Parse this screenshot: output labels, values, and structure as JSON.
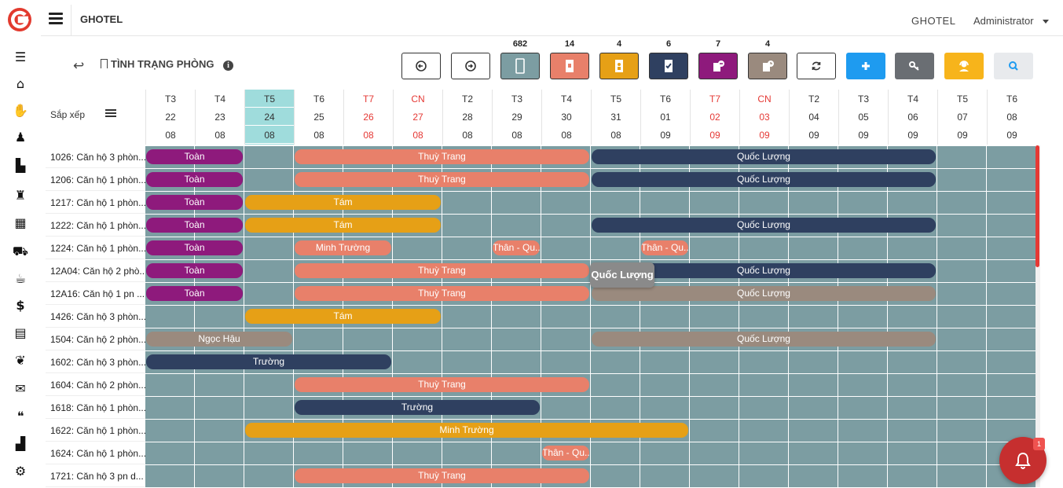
{
  "app": {
    "brand": "GHOTEL",
    "brand_right": "GHOTEL",
    "user": "Administrator"
  },
  "page": {
    "title": "TÌNH TRẠNG PHÒNG"
  },
  "toolbar": {
    "counts": [
      "682",
      "14",
      "4",
      "6",
      "7",
      "4"
    ],
    "colors": {
      "blank": "#7c9da2",
      "dirty": "#e8806a",
      "occupied": "#e6a016",
      "checkout": "#2f4060",
      "repair": "#8e1a7c",
      "reserved": "#9a8a7e",
      "add": "#1e9bf0",
      "key": "#6a6e73",
      "support": "#f7b41b",
      "search": "#e8eaed"
    }
  },
  "grid": {
    "sort_label": "Sắp xếp",
    "days": [
      {
        "dow": "T3",
        "d": "22",
        "m": "08",
        "wk": false
      },
      {
        "dow": "T4",
        "d": "23",
        "m": "08",
        "wk": false
      },
      {
        "dow": "T5",
        "d": "24",
        "m": "08",
        "wk": false,
        "today": true
      },
      {
        "dow": "T6",
        "d": "25",
        "m": "08",
        "wk": false
      },
      {
        "dow": "T7",
        "d": "26",
        "m": "08",
        "wk": true
      },
      {
        "dow": "CN",
        "d": "27",
        "m": "08",
        "wk": true
      },
      {
        "dow": "T2",
        "d": "28",
        "m": "08",
        "wk": false
      },
      {
        "dow": "T3",
        "d": "29",
        "m": "08",
        "wk": false
      },
      {
        "dow": "T4",
        "d": "30",
        "m": "08",
        "wk": false
      },
      {
        "dow": "T5",
        "d": "31",
        "m": "08",
        "wk": false
      },
      {
        "dow": "T6",
        "d": "01",
        "m": "09",
        "wk": false
      },
      {
        "dow": "T7",
        "d": "02",
        "m": "09",
        "wk": true
      },
      {
        "dow": "CN",
        "d": "03",
        "m": "09",
        "wk": true
      },
      {
        "dow": "T2",
        "d": "04",
        "m": "09",
        "wk": false
      },
      {
        "dow": "T3",
        "d": "05",
        "m": "09",
        "wk": false
      },
      {
        "dow": "T4",
        "d": "06",
        "m": "09",
        "wk": false
      },
      {
        "dow": "T5",
        "d": "07",
        "m": "09",
        "wk": false
      },
      {
        "dow": "T6",
        "d": "08",
        "m": "09",
        "wk": false
      }
    ],
    "rooms": [
      {
        "label": "1026: Căn hộ 3 phòn...",
        "bookings": [
          {
            "name": "Toàn",
            "start": 0,
            "span": 2,
            "color": "#8e1a7c"
          },
          {
            "name": "Thuỳ Trang",
            "start": 3,
            "span": 6,
            "color": "#e8806a"
          },
          {
            "name": "Quốc Lượng",
            "start": 9,
            "span": 7,
            "color": "#2f4060"
          }
        ]
      },
      {
        "label": "1206: Căn hộ 1 phòn...",
        "bookings": [
          {
            "name": "Toàn",
            "start": 0,
            "span": 2,
            "color": "#8e1a7c"
          },
          {
            "name": "Thuỳ Trang",
            "start": 3,
            "span": 6,
            "color": "#e8806a"
          },
          {
            "name": "Quốc Lượng",
            "start": 9,
            "span": 7,
            "color": "#2f4060"
          }
        ]
      },
      {
        "label": "1217: Căn hộ 1 phòn...",
        "bookings": [
          {
            "name": "Toàn",
            "start": 0,
            "span": 2,
            "color": "#8e1a7c"
          },
          {
            "name": "Tám",
            "start": 2,
            "span": 4,
            "color": "#e6a016"
          }
        ]
      },
      {
        "label": "1222: Căn hộ 1 phòn...",
        "bookings": [
          {
            "name": "Toàn",
            "start": 0,
            "span": 2,
            "color": "#8e1a7c"
          },
          {
            "name": "Tám",
            "start": 2,
            "span": 4,
            "color": "#e6a016"
          },
          {
            "name": "Quốc Lượng",
            "start": 9,
            "span": 7,
            "color": "#2f4060"
          }
        ]
      },
      {
        "label": "1224: Căn hộ 1 phòn...",
        "bookings": [
          {
            "name": "Toàn",
            "start": 0,
            "span": 2,
            "color": "#8e1a7c"
          },
          {
            "name": "Minh Trường",
            "start": 3,
            "span": 2,
            "color": "#e8806a"
          },
          {
            "name": "Thân - Qu...",
            "start": 7,
            "span": 1,
            "color": "#e8806a"
          },
          {
            "name": "Thân - Qu...",
            "start": 10,
            "span": 1,
            "color": "#e8806a"
          }
        ]
      },
      {
        "label": "12A04: Căn hộ 2 phò...",
        "bookings": [
          {
            "name": "Toàn",
            "start": 0,
            "span": 2,
            "color": "#8e1a7c"
          },
          {
            "name": "Thuỳ Trang",
            "start": 3,
            "span": 6,
            "color": "#e8806a"
          },
          {
            "name": "Quốc Lượng",
            "start": 9,
            "span": 7,
            "color": "#2f4060"
          }
        ]
      },
      {
        "label": "12A16: Căn hộ 1 pn ...",
        "bookings": [
          {
            "name": "Toàn",
            "start": 0,
            "span": 2,
            "color": "#8e1a7c"
          },
          {
            "name": "Thuỳ Trang",
            "start": 3,
            "span": 6,
            "color": "#e8806a"
          },
          {
            "name": "Quốc Lượng",
            "start": 9,
            "span": 7,
            "color": "#9a8a7e"
          }
        ]
      },
      {
        "label": "1426: Căn hộ 3 phòn...",
        "bookings": [
          {
            "name": "Tám",
            "start": 2,
            "span": 4,
            "color": "#e6a016"
          }
        ]
      },
      {
        "label": "1504: Căn hộ 2 phòn...",
        "bookings": [
          {
            "name": "Ngọc Hậu",
            "start": 0,
            "span": 3,
            "color": "#9a8a7e"
          },
          {
            "name": "Quốc Lượng",
            "start": 9,
            "span": 7,
            "color": "#9a8a7e"
          }
        ]
      },
      {
        "label": "1602: Căn hộ 3 phòn...",
        "bookings": [
          {
            "name": "Trường",
            "start": 0,
            "span": 5,
            "color": "#2f4060"
          }
        ]
      },
      {
        "label": "1604: Căn hộ 2 phòn...",
        "bookings": [
          {
            "name": "Thuỳ Trang",
            "start": 3,
            "span": 6,
            "color": "#e8806a"
          }
        ]
      },
      {
        "label": "1618: Căn hộ 1 phòn...",
        "bookings": [
          {
            "name": "Trường",
            "start": 3,
            "span": 5,
            "color": "#2f4060"
          }
        ]
      },
      {
        "label": "1622: Căn hộ 1 phòn...",
        "bookings": [
          {
            "name": "Minh Trường",
            "start": 2,
            "span": 9,
            "color": "#e6a016"
          }
        ]
      },
      {
        "label": "1624: Căn hộ 1 phòn...",
        "bookings": [
          {
            "name": "Thân - Qu...",
            "start": 8,
            "span": 1,
            "color": "#e8806a"
          }
        ]
      },
      {
        "label": "1721: Căn hộ 3 pn d...",
        "bookings": [
          {
            "name": "Thuỳ Trang",
            "start": 3,
            "span": 6,
            "color": "#e8806a"
          }
        ]
      }
    ],
    "tooltip": "Quốc Lượng"
  },
  "notifications": {
    "badge": "1"
  }
}
